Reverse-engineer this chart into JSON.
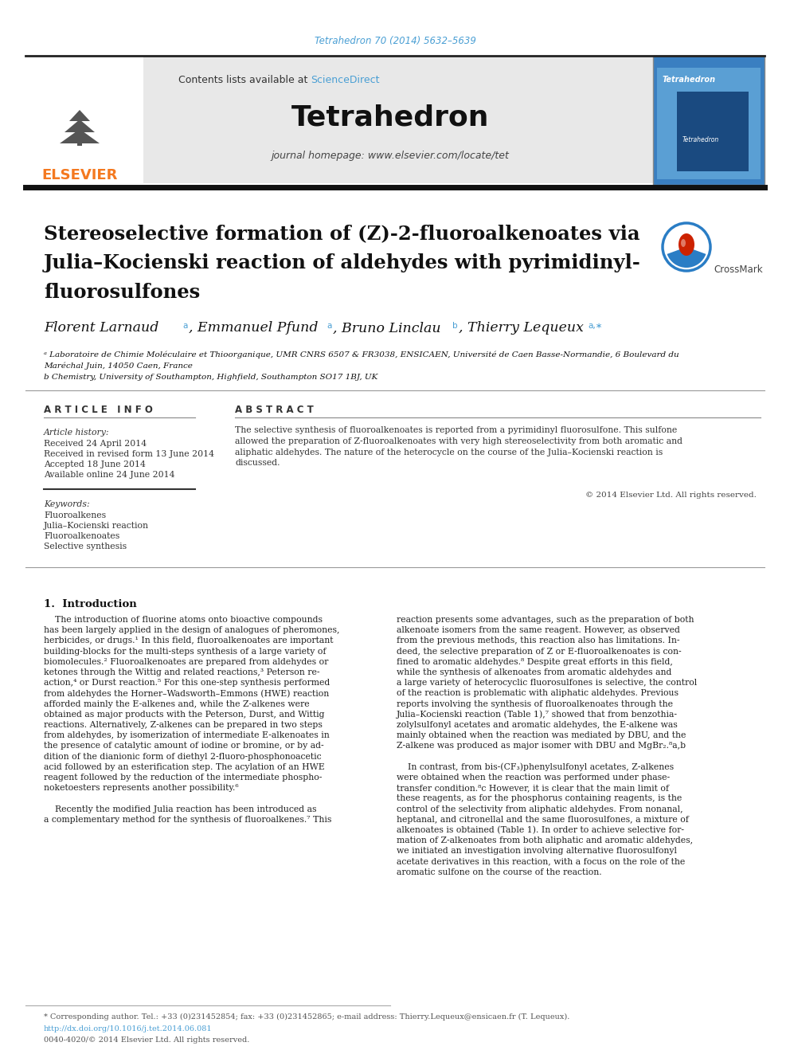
{
  "page_width": 9.92,
  "page_height": 13.23,
  "bg_color": "#ffffff",
  "journal_ref": "Tetrahedron 70 (2014) 5632–5639",
  "journal_ref_color": "#4a9fd4",
  "journal_name": "Tetrahedron",
  "journal_homepage": "journal homepage: www.elsevier.com/locate/tet",
  "contents_text": "Contents lists available at ",
  "sciencedirect_text": "ScienceDirect",
  "sciencedirect_color": "#4a9fd4",
  "header_bg": "#e8e8e8",
  "elsevier_color": "#f47920",
  "article_title_line1": "Stereoselective formation of (Z)-2-fluoroalkenoates via",
  "article_title_line2": "Julia–Kocienski reaction of aldehydes with pyrimidinyl-",
  "article_title_line3": "fluorosulfones",
  "affil_a_line1": "ᵃ Laboratoire de Chimie Moléculaire et Thioorganique, UMR CNRS 6507 & FR3038, ENSICAEN, Université de Caen Basse-Normandie, 6 Boulevard du",
  "affil_a_line2": "Maréchal Juin, 14050 Caen, France",
  "affil_b": "b Chemistry, University of Southampton, Highfield, Southampton SO17 1BJ, UK",
  "article_info_header": "A R T I C L E   I N F O",
  "abstract_header": "A B S T R A C T",
  "article_history_label": "Article history:",
  "received": "Received 24 April 2014",
  "received_revised": "Received in revised form 13 June 2014",
  "accepted": "Accepted 18 June 2014",
  "available": "Available online 24 June 2014",
  "keywords_label": "Keywords:",
  "keyword1": "Fluoroalkenes",
  "keyword2": "Julia–Kocienski reaction",
  "keyword3": "Fluoroalkenoates",
  "keyword4": "Selective synthesis",
  "abstract_lines": [
    "The selective synthesis of fluoroalkenoates is reported from a pyrimidinyl fluorosulfone. This sulfone",
    "allowed the preparation of Z-fluoroalkenoates with very high stereoselectivity from both aromatic and",
    "aliphatic aldehydes. The nature of the heterocycle on the course of the Julia–Kocienski reaction is",
    "discussed."
  ],
  "copyright": "© 2014 Elsevier Ltd. All rights reserved.",
  "intro_heading": "1.  Introduction",
  "col1_lines": [
    "    The introduction of fluorine atoms onto bioactive compounds",
    "has been largely applied in the design of analogues of pheromones,",
    "herbicides, or drugs.¹ In this field, fluoroalkenoates are important",
    "building-blocks for the multi-steps synthesis of a large variety of",
    "biomolecules.² Fluoroalkenoates are prepared from aldehydes or",
    "ketones through the Wittig and related reactions,³ Peterson re-",
    "action,⁴ or Durst reaction.⁵ For this one-step synthesis performed",
    "from aldehydes the Horner–Wadsworth–Emmons (HWE) reaction",
    "afforded mainly the E-alkenes and, while the Z-alkenes were",
    "obtained as major products with the Peterson, Durst, and Wittig",
    "reactions. Alternatively, Z-alkenes can be prepared in two steps",
    "from aldehydes, by isomerization of intermediate E-alkenoates in",
    "the presence of catalytic amount of iodine or bromine, or by ad-",
    "dition of the dianionic form of diethyl 2-fluoro-phosphonoacetic",
    "acid followed by an esterification step. The acylation of an HWE",
    "reagent followed by the reduction of the intermediate phospho-",
    "noketoesters represents another possibility.⁶",
    "",
    "    Recently the modified Julia reaction has been introduced as",
    "a complementary method for the synthesis of fluoroalkenes.⁷ This"
  ],
  "col2_lines": [
    "reaction presents some advantages, such as the preparation of both",
    "alkenoate isomers from the same reagent. However, as observed",
    "from the previous methods, this reaction also has limitations. In-",
    "deed, the selective preparation of Z or E-fluoroalkenoates is con-",
    "fined to aromatic aldehydes.⁸ Despite great efforts in this field,",
    "while the synthesis of alkenoates from aromatic aldehydes and",
    "a large variety of heterocyclic fluorosulfones is selective, the control",
    "of the reaction is problematic with aliphatic aldehydes. Previous",
    "reports involving the synthesis of fluoroalkenoates through the",
    "Julia–Kocienski reaction (Table 1),⁷ showed that from benzothia-",
    "zolylsulfonyl acetates and aromatic aldehydes, the E-alkene was",
    "mainly obtained when the reaction was mediated by DBU, and the",
    "Z-alkene was produced as major isomer with DBU and MgBr₂.⁸a,b",
    "",
    "    In contrast, from bis-(CF₃)phenylsulfonyl acetates, Z-alkenes",
    "were obtained when the reaction was performed under phase-",
    "transfer condition.⁸c However, it is clear that the main limit of",
    "these reagents, as for the phosphorus containing reagents, is the",
    "control of the selectivity from aliphatic aldehydes. From nonanal,",
    "heptanal, and citronellal and the same fluorosulfones, a mixture of",
    "alkenoates is obtained (Table 1). In order to achieve selective for-",
    "mation of Z-alkenoates from both aliphatic and aromatic aldehydes,",
    "we initiated an investigation involving alternative fluorosulfonyl",
    "acetate derivatives in this reaction, with a focus on the role of the",
    "aromatic sulfone on the course of the reaction."
  ],
  "footer_tel": "* Corresponding author. Tel.: +33 (0)231452854; fax: +33 (0)231452865; e-mail address: Thierry.Lequeux@ensicaen.fr (T. Lequeux).",
  "footer_doi": "http://dx.doi.org/10.1016/j.tet.2014.06.081",
  "footer_issn": "0040-4020/© 2014 Elsevier Ltd. All rights reserved."
}
